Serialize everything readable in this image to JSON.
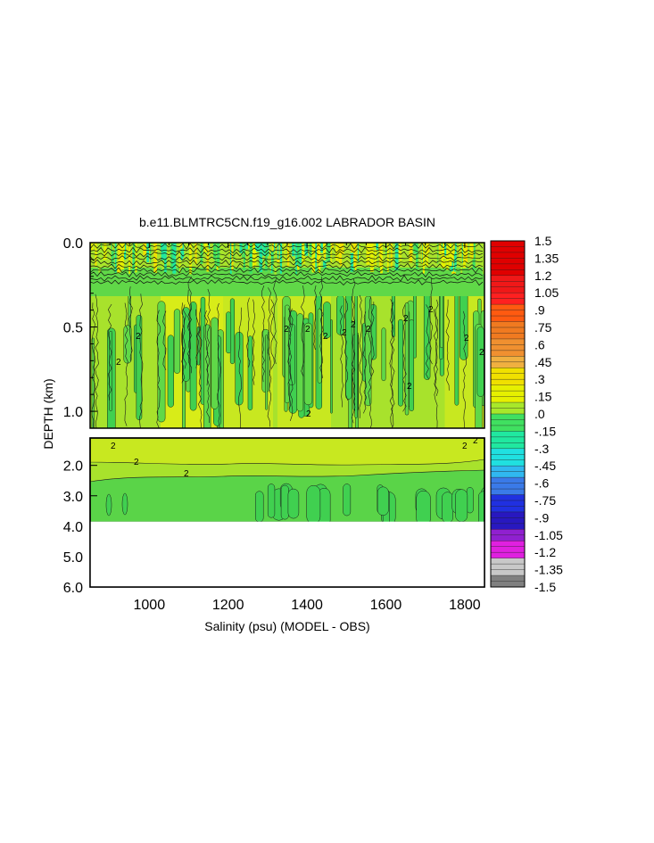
{
  "chart_data": {
    "type": "heatmap",
    "title": "b.e11.BLMTRC5CN.f19_g16.002 LABRADOR BASIN",
    "xlabel": "Salinity (psu) (MODEL - OBS)",
    "ylabel": "DEPTH (km)",
    "x_ticks": [
      "1000",
      "1200",
      "1400",
      "1600",
      "1800"
    ],
    "x_tick_values": [
      1000,
      1200,
      1400,
      1600,
      1800
    ],
    "xlim": [
      850,
      1850
    ],
    "upper_panel": {
      "ylim": [
        0.0,
        1.1
      ],
      "y_ticks": [
        "0.0",
        "0.5",
        "1.0"
      ],
      "y_tick_values": [
        0.0,
        0.5,
        1.0
      ]
    },
    "lower_panel": {
      "ylim": [
        1.1,
        6.0
      ],
      "y_ticks": [
        "2.0",
        "3.0",
        "4.0",
        "5.0",
        "6.0"
      ],
      "y_tick_values": [
        2.0,
        3.0,
        4.0,
        5.0,
        6.0
      ],
      "data_bottom_depth": 3.85
    },
    "contour_label": "2",
    "colorbar": {
      "range": [
        -1.5,
        1.5
      ],
      "labels": [
        "1.5",
        "1.35",
        "1.2",
        "1.05",
        ".9",
        ".75",
        ".6",
        ".45",
        ".3",
        ".15",
        ".0",
        "-.15",
        "-.3",
        "-.45",
        "-.6",
        "-.75",
        "-.9",
        "-1.05",
        "-1.2",
        "-1.35",
        "-1.5"
      ],
      "label_values": [
        1.5,
        1.35,
        1.2,
        1.05,
        0.9,
        0.75,
        0.6,
        0.45,
        0.3,
        0.15,
        0.0,
        -0.15,
        -0.3,
        -0.45,
        -0.6,
        -0.75,
        -0.9,
        -1.05,
        -1.2,
        -1.35,
        -1.5
      ],
      "colors": [
        "#e00000",
        "#e00000",
        "#f01818",
        "#ff2020",
        "#ff5a10",
        "#f07a20",
        "#f09030",
        "#f0b040",
        "#f0e000",
        "#e6f000",
        "#a8e82a",
        "#40e060",
        "#20e8a0",
        "#20e0e0",
        "#30b8f0",
        "#3a7ae8",
        "#2030e0",
        "#2818c0",
        "#9020d0",
        "#e020e0",
        "#c8c8c8",
        "#808080"
      ]
    }
  }
}
